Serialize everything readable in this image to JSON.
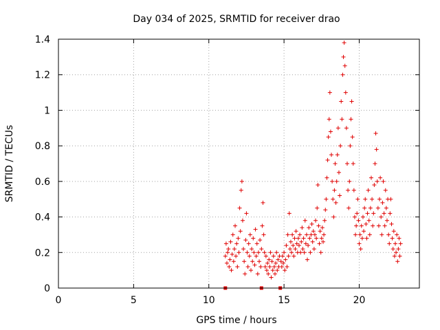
{
  "chart_data": {
    "type": "scatter",
    "title": "Day 034 of 2025, SRMTID for receiver drao",
    "xlabel": "GPS time / hours",
    "ylabel": "SRMTID / TECUs",
    "xlim": [
      0,
      24
    ],
    "ylim": [
      0,
      1.4
    ],
    "xticks": [
      "0",
      "5",
      "10",
      "15",
      "20"
    ],
    "xtick_values": [
      0,
      5,
      10,
      15,
      20
    ],
    "yticks": [
      "0",
      "0.2",
      "0.4",
      "0.6",
      "0.8",
      "1",
      "1.2",
      "1.4"
    ],
    "ytick_values": [
      0,
      0.2,
      0.4,
      0.6,
      0.8,
      1.0,
      1.2,
      1.4
    ],
    "grid": true,
    "marker": "+",
    "color": "#e00000",
    "gap_markers_x": [
      11.1,
      13.5,
      14.75
    ],
    "series": [
      {
        "name": "SRMTID",
        "points": [
          [
            11.1,
            0.18
          ],
          [
            11.15,
            0.25
          ],
          [
            11.2,
            0.14
          ],
          [
            11.25,
            0.2
          ],
          [
            11.3,
            0.22
          ],
          [
            11.35,
            0.12
          ],
          [
            11.4,
            0.16
          ],
          [
            11.45,
            0.26
          ],
          [
            11.5,
            0.1
          ],
          [
            11.55,
            0.19
          ],
          [
            11.6,
            0.3
          ],
          [
            11.65,
            0.15
          ],
          [
            11.7,
            0.22
          ],
          [
            11.75,
            0.35
          ],
          [
            11.8,
            0.18
          ],
          [
            11.85,
            0.25
          ],
          [
            11.9,
            0.12
          ],
          [
            11.95,
            0.28
          ],
          [
            12.0,
            0.2
          ],
          [
            12.05,
            0.45
          ],
          [
            12.1,
            0.32
          ],
          [
            12.15,
            0.55
          ],
          [
            12.2,
            0.6
          ],
          [
            12.25,
            0.38
          ],
          [
            12.3,
            0.22
          ],
          [
            12.35,
            0.15
          ],
          [
            12.4,
            0.08
          ],
          [
            12.45,
            0.27
          ],
          [
            12.5,
            0.42
          ],
          [
            12.55,
            0.2
          ],
          [
            12.6,
            0.12
          ],
          [
            12.65,
            0.25
          ],
          [
            12.7,
            0.18
          ],
          [
            12.75,
            0.3
          ],
          [
            12.8,
            0.1
          ],
          [
            12.85,
            0.22
          ],
          [
            12.9,
            0.15
          ],
          [
            12.95,
            0.28
          ],
          [
            13.0,
            0.2
          ],
          [
            13.05,
            0.13
          ],
          [
            13.1,
            0.33
          ],
          [
            13.15,
            0.18
          ],
          [
            13.2,
            0.25
          ],
          [
            13.25,
            0.08
          ],
          [
            13.3,
            0.2
          ],
          [
            13.35,
            0.15
          ],
          [
            13.4,
            0.27
          ],
          [
            13.45,
            0.12
          ],
          [
            13.5,
            0.22
          ],
          [
            13.55,
            0.35
          ],
          [
            13.6,
            0.48
          ],
          [
            13.65,
            0.3
          ],
          [
            13.7,
            0.2
          ],
          [
            13.75,
            0.12
          ],
          [
            13.8,
            0.18
          ],
          [
            13.85,
            0.1
          ],
          [
            13.9,
            0.14
          ],
          [
            13.95,
            0.08
          ],
          [
            14.0,
            0.16
          ],
          [
            14.05,
            0.12
          ],
          [
            14.1,
            0.2
          ],
          [
            14.15,
            0.06
          ],
          [
            14.2,
            0.15
          ],
          [
            14.25,
            0.1
          ],
          [
            14.3,
            0.18
          ],
          [
            14.35,
            0.12
          ],
          [
            14.4,
            0.08
          ],
          [
            14.45,
            0.14
          ],
          [
            14.5,
            0.2
          ],
          [
            14.55,
            0.1
          ],
          [
            14.6,
            0.16
          ],
          [
            14.65,
            0.12
          ],
          [
            14.7,
            0.18
          ],
          [
            14.8,
            0.15
          ],
          [
            14.85,
            0.12
          ],
          [
            14.9,
            0.18
          ],
          [
            14.95,
            0.14
          ],
          [
            15.0,
            0.2
          ],
          [
            15.05,
            0.1
          ],
          [
            15.1,
            0.16
          ],
          [
            15.15,
            0.24
          ],
          [
            15.2,
            0.12
          ],
          [
            15.25,
            0.3
          ],
          [
            15.3,
            0.18
          ],
          [
            15.35,
            0.42
          ],
          [
            15.4,
            0.22
          ],
          [
            15.45,
            0.26
          ],
          [
            15.5,
            0.2
          ],
          [
            15.55,
            0.3
          ],
          [
            15.6,
            0.24
          ],
          [
            15.65,
            0.18
          ],
          [
            15.7,
            0.28
          ],
          [
            15.75,
            0.22
          ],
          [
            15.8,
            0.32
          ],
          [
            15.85,
            0.25
          ],
          [
            15.9,
            0.2
          ],
          [
            15.95,
            0.28
          ],
          [
            16.0,
            0.24
          ],
          [
            16.05,
            0.3
          ],
          [
            16.1,
            0.2
          ],
          [
            16.15,
            0.26
          ],
          [
            16.2,
            0.34
          ],
          [
            16.25,
            0.22
          ],
          [
            16.3,
            0.28
          ],
          [
            16.35,
            0.2
          ],
          [
            16.4,
            0.38
          ],
          [
            16.45,
            0.25
          ],
          [
            16.5,
            0.3
          ],
          [
            16.55,
            0.16
          ],
          [
            16.6,
            0.24
          ],
          [
            16.65,
            0.34
          ],
          [
            16.7,
            0.28
          ],
          [
            16.75,
            0.2
          ],
          [
            16.8,
            0.3
          ],
          [
            16.85,
            0.36
          ],
          [
            16.9,
            0.26
          ],
          [
            16.95,
            0.32
          ],
          [
            17.0,
            0.22
          ],
          [
            17.05,
            0.3
          ],
          [
            17.1,
            0.38
          ],
          [
            17.15,
            0.28
          ],
          [
            17.2,
            0.45
          ],
          [
            17.25,
            0.58
          ],
          [
            17.3,
            0.35
          ],
          [
            17.35,
            0.25
          ],
          [
            17.4,
            0.32
          ],
          [
            17.45,
            0.2
          ],
          [
            17.5,
            0.28
          ],
          [
            17.55,
            0.34
          ],
          [
            17.6,
            0.26
          ],
          [
            17.65,
            0.3
          ],
          [
            17.7,
            0.38
          ],
          [
            17.75,
            0.44
          ],
          [
            17.8,
            0.5
          ],
          [
            17.85,
            0.62
          ],
          [
            17.9,
            0.72
          ],
          [
            17.95,
            0.85
          ],
          [
            18.0,
            0.95
          ],
          [
            18.05,
            1.1
          ],
          [
            18.1,
            0.88
          ],
          [
            18.15,
            0.75
          ],
          [
            18.2,
            0.6
          ],
          [
            18.25,
            0.5
          ],
          [
            18.3,
            0.4
          ],
          [
            18.35,
            0.55
          ],
          [
            18.4,
            0.7
          ],
          [
            18.45,
            0.48
          ],
          [
            18.5,
            0.6
          ],
          [
            18.55,
            0.75
          ],
          [
            18.6,
            0.9
          ],
          [
            18.65,
            0.65
          ],
          [
            18.7,
            0.52
          ],
          [
            18.75,
            0.8
          ],
          [
            18.8,
            1.05
          ],
          [
            18.85,
            0.95
          ],
          [
            18.9,
            1.2
          ],
          [
            18.95,
            1.3
          ],
          [
            19.0,
            1.38
          ],
          [
            19.05,
            1.25
          ],
          [
            19.1,
            1.1
          ],
          [
            19.15,
            0.9
          ],
          [
            19.2,
            0.7
          ],
          [
            19.25,
            0.55
          ],
          [
            19.3,
            0.45
          ],
          [
            19.35,
            0.6
          ],
          [
            19.4,
            0.8
          ],
          [
            19.45,
            0.95
          ],
          [
            19.5,
            1.05
          ],
          [
            19.55,
            0.85
          ],
          [
            19.6,
            0.7
          ],
          [
            19.65,
            0.55
          ],
          [
            19.7,
            0.4
          ],
          [
            19.75,
            0.3
          ],
          [
            19.8,
            0.35
          ],
          [
            19.85,
            0.42
          ],
          [
            19.9,
            0.5
          ],
          [
            19.95,
            0.38
          ],
          [
            20.0,
            0.25
          ],
          [
            20.05,
            0.3
          ],
          [
            20.1,
            0.22
          ],
          [
            20.15,
            0.35
          ],
          [
            20.2,
            0.28
          ],
          [
            20.25,
            0.4
          ],
          [
            20.3,
            0.32
          ],
          [
            20.35,
            0.45
          ],
          [
            20.4,
            0.5
          ],
          [
            20.45,
            0.36
          ],
          [
            20.5,
            0.28
          ],
          [
            20.55,
            0.42
          ],
          [
            20.6,
            0.55
          ],
          [
            20.65,
            0.38
          ],
          [
            20.7,
            0.3
          ],
          [
            20.75,
            0.45
          ],
          [
            20.8,
            0.62
          ],
          [
            20.85,
            0.5
          ],
          [
            20.9,
            0.35
          ],
          [
            20.95,
            0.42
          ],
          [
            21.0,
            0.58
          ],
          [
            21.05,
            0.7
          ],
          [
            21.1,
            0.87
          ],
          [
            21.15,
            0.78
          ],
          [
            21.2,
            0.6
          ],
          [
            21.25,
            0.45
          ],
          [
            21.3,
            0.35
          ],
          [
            21.35,
            0.5
          ],
          [
            21.4,
            0.62
          ],
          [
            21.45,
            0.4
          ],
          [
            21.5,
            0.3
          ],
          [
            21.55,
            0.48
          ],
          [
            21.6,
            0.6
          ],
          [
            21.65,
            0.42
          ],
          [
            21.7,
            0.35
          ],
          [
            21.75,
            0.55
          ],
          [
            21.8,
            0.45
          ],
          [
            21.85,
            0.38
          ],
          [
            21.9,
            0.5
          ],
          [
            21.95,
            0.3
          ],
          [
            22.0,
            0.25
          ],
          [
            22.05,
            0.42
          ],
          [
            22.1,
            0.5
          ],
          [
            22.15,
            0.36
          ],
          [
            22.2,
            0.28
          ],
          [
            22.25,
            0.22
          ],
          [
            22.3,
            0.32
          ],
          [
            22.35,
            0.18
          ],
          [
            22.4,
            0.25
          ],
          [
            22.45,
            0.2
          ],
          [
            22.5,
            0.3
          ],
          [
            22.55,
            0.15
          ],
          [
            22.6,
            0.22
          ],
          [
            22.65,
            0.28
          ],
          [
            22.7,
            0.18
          ],
          [
            22.75,
            0.25
          ]
        ]
      }
    ]
  }
}
